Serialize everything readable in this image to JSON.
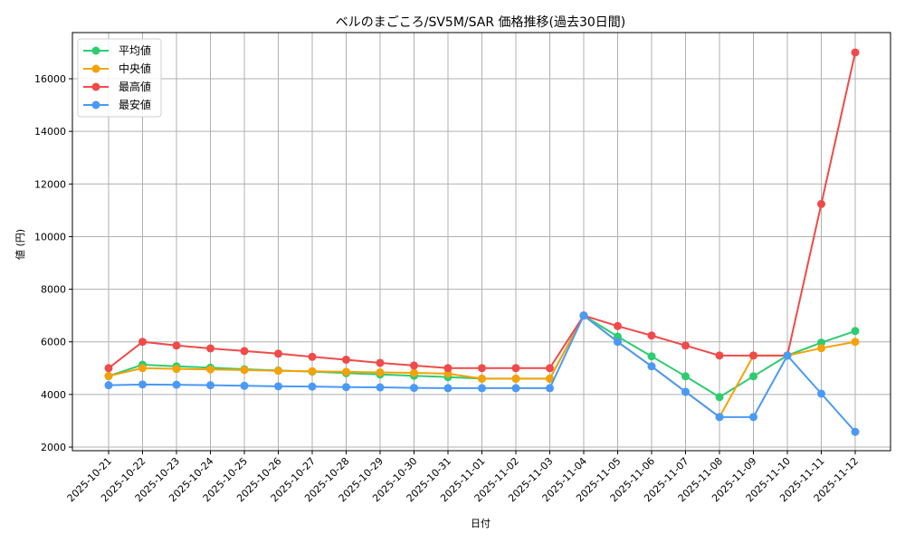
{
  "chart_data": {
    "type": "line",
    "title": "ベルのまごころ/SV5M/SAR 価格推移(過去30日間)",
    "xlabel": "日付",
    "ylabel": "値 (円)",
    "ylim": [
      1800,
      17600
    ],
    "yticks": [
      2000,
      4000,
      6000,
      8000,
      10000,
      12000,
      14000,
      16000
    ],
    "grid": true,
    "legend_position": "upper left",
    "x": [
      "2025-10-21",
      "2025-10-22",
      "2025-10-23",
      "2025-10-24",
      "2025-10-25",
      "2025-10-26",
      "2025-10-27",
      "2025-10-28",
      "2025-10-29",
      "2025-10-30",
      "2025-10-31",
      "2025-11-01",
      "2025-11-02",
      "2025-11-03",
      "2025-11-04",
      "2025-11-05",
      "2025-11-06",
      "2025-11-07",
      "2025-11-08",
      "2025-11-09",
      "2025-11-10",
      "2025-11-11",
      "2025-11-12"
    ],
    "series": [
      {
        "name": "平均値",
        "color": "#2ecc71",
        "values": [
          4700,
          5130,
          5070,
          5020,
          4960,
          4910,
          4870,
          4810,
          4760,
          4710,
          4660,
          4600,
          4600,
          4600,
          7000,
          6200,
          5450,
          4690,
          3900,
          4690,
          5480,
          5970,
          6410
        ]
      },
      {
        "name": "中央値",
        "color": "#f5a20a",
        "values": [
          4700,
          5000,
          4970,
          4950,
          4930,
          4900,
          4880,
          4860,
          4840,
          4820,
          4790,
          4600,
          4600,
          4600,
          7000,
          6000,
          5070,
          4100,
          3140,
          5480,
          5480,
          5760,
          6000
        ]
      },
      {
        "name": "最高値",
        "color": "#f04a4a",
        "values": [
          5000,
          6000,
          5860,
          5750,
          5650,
          5550,
          5430,
          5320,
          5200,
          5100,
          5000,
          5000,
          5000,
          5000,
          7000,
          6600,
          6240,
          5860,
          5480,
          5480,
          5480,
          11240,
          17000
        ]
      },
      {
        "name": "最安値",
        "color": "#4a9af5",
        "values": [
          4350,
          4380,
          4370,
          4350,
          4330,
          4310,
          4300,
          4280,
          4270,
          4250,
          4240,
          4240,
          4240,
          4240,
          7000,
          6000,
          5070,
          4100,
          3140,
          3140,
          5480,
          4030,
          2580
        ]
      }
    ]
  }
}
